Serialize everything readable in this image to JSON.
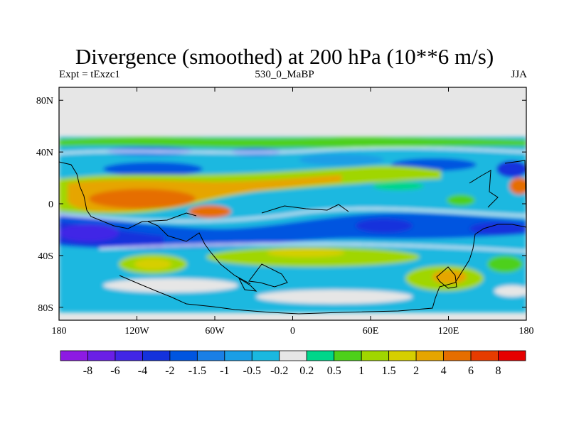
{
  "title": "Divergence (smoothed) at 200 hPa (10**6 m/s)",
  "subtitle_left": "Expt = tExzc1",
  "subtitle_center": "530_0_MaBP",
  "subtitle_right": "JJA",
  "colors": {
    "missing": "#e6e6e6",
    "coast": "#000000"
  },
  "chart_data": {
    "type": "heatmap",
    "title": "Divergence (smoothed) at 200 hPa (10**6 m/s)",
    "xlabel": "",
    "ylabel": "",
    "xlim": [
      -180,
      180
    ],
    "ylim": [
      -90,
      90
    ],
    "x_ticks": [
      {
        "value": -180,
        "label": "180"
      },
      {
        "value": -120,
        "label": "120W"
      },
      {
        "value": -60,
        "label": "60W"
      },
      {
        "value": 0,
        "label": "0"
      },
      {
        "value": 60,
        "label": "60E"
      },
      {
        "value": 120,
        "label": "120E"
      },
      {
        "value": 180,
        "label": "180"
      }
    ],
    "y_ticks": [
      {
        "value": 80,
        "label": "80N"
      },
      {
        "value": 40,
        "label": "40N"
      },
      {
        "value": 0,
        "label": "0"
      },
      {
        "value": -40,
        "label": "40S"
      },
      {
        "value": -80,
        "label": "80S"
      }
    ],
    "data_lat_range": [
      -82,
      50
    ],
    "colorbar": {
      "labels": [
        "-8",
        "-6",
        "-4",
        "-2",
        "-1.5",
        "-1",
        "-0.5",
        "-0.2",
        "0.2",
        "0.5",
        "1",
        "1.5",
        "2",
        "4",
        "6",
        "8"
      ],
      "colors": [
        "#8d1ae3",
        "#6a1fe6",
        "#4126e6",
        "#1432dc",
        "#0055e0",
        "#1a7fe6",
        "#1a9ee6",
        "#1ab8e0",
        "#e6e6e6",
        "#00d68a",
        "#4dd01a",
        "#a0d600",
        "#d6cf00",
        "#e6a500",
        "#e66e00",
        "#e63c00",
        "#e60000"
      ]
    },
    "regions": [
      {
        "kind": "polar_gap_north",
        "lat_range": [
          50,
          90
        ],
        "level": "missing"
      },
      {
        "kind": "polar_gap_south",
        "lat_range": [
          -90,
          -82
        ],
        "level": "missing"
      },
      {
        "kind": "tropical_positive_band",
        "lon_range": [
          -180,
          180
        ],
        "lat_range": [
          -20,
          25
        ],
        "peak": "4 to 6"
      },
      {
        "kind": "southern_negative_band",
        "lon_range": [
          -180,
          180
        ],
        "lat_range": [
          -40,
          -15
        ],
        "peak": "-2 to -4"
      }
    ]
  }
}
